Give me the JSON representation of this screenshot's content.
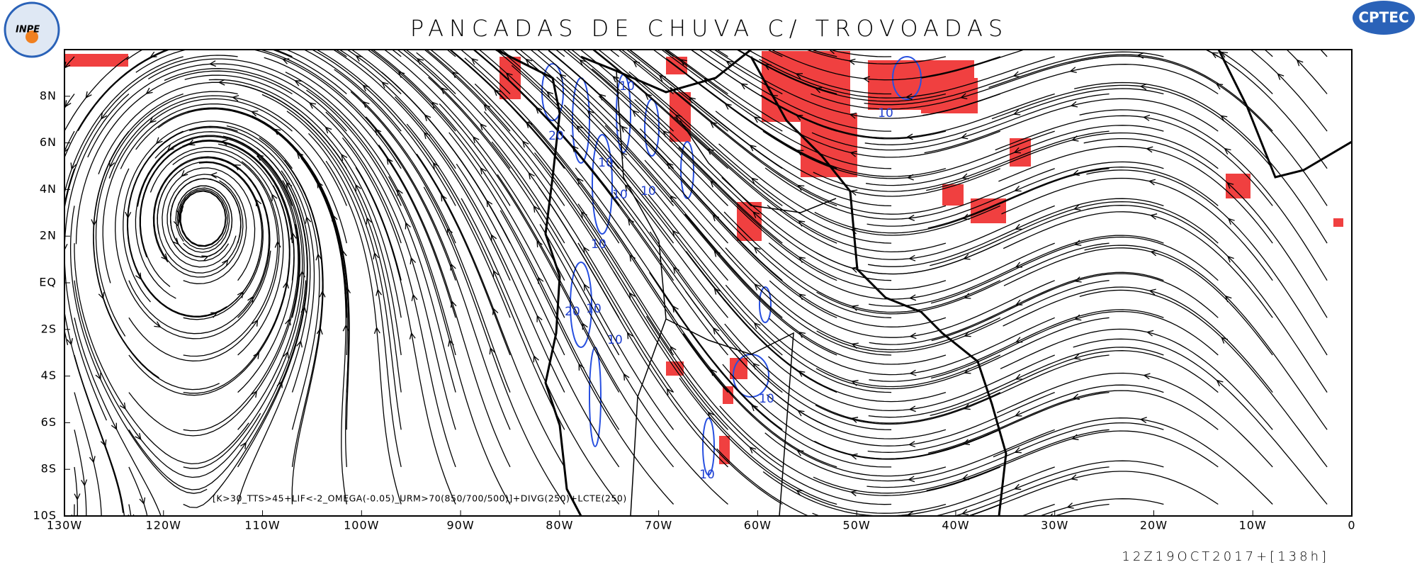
{
  "title": "PANCADAS DE CHUVA C/ TROVOADAS",
  "logos": {
    "left": "INPE",
    "right": "CPTEC"
  },
  "lat_labels": [
    "8N",
    "6N",
    "4N",
    "2N",
    "EQ",
    "2S",
    "4S",
    "6S",
    "8S",
    "10S"
  ],
  "lon_labels": [
    "130W",
    "120W",
    "110W",
    "100W",
    "90W",
    "80W",
    "70W",
    "60W",
    "50W",
    "40W",
    "30W",
    "20W",
    "10W",
    "0"
  ],
  "contour_labels": [
    "10",
    "20",
    "10",
    "10",
    "10",
    "10",
    "20",
    "10",
    "10",
    "10",
    "10",
    "10"
  ],
  "formula": "[K>30_TTS>45+LIF<-2_OMEGA(-0.05)_URM>70(850/700/500)]+DIVG(250)+LCTE(250)",
  "timestamp": "12Z19OCT2017+[138h]"
}
